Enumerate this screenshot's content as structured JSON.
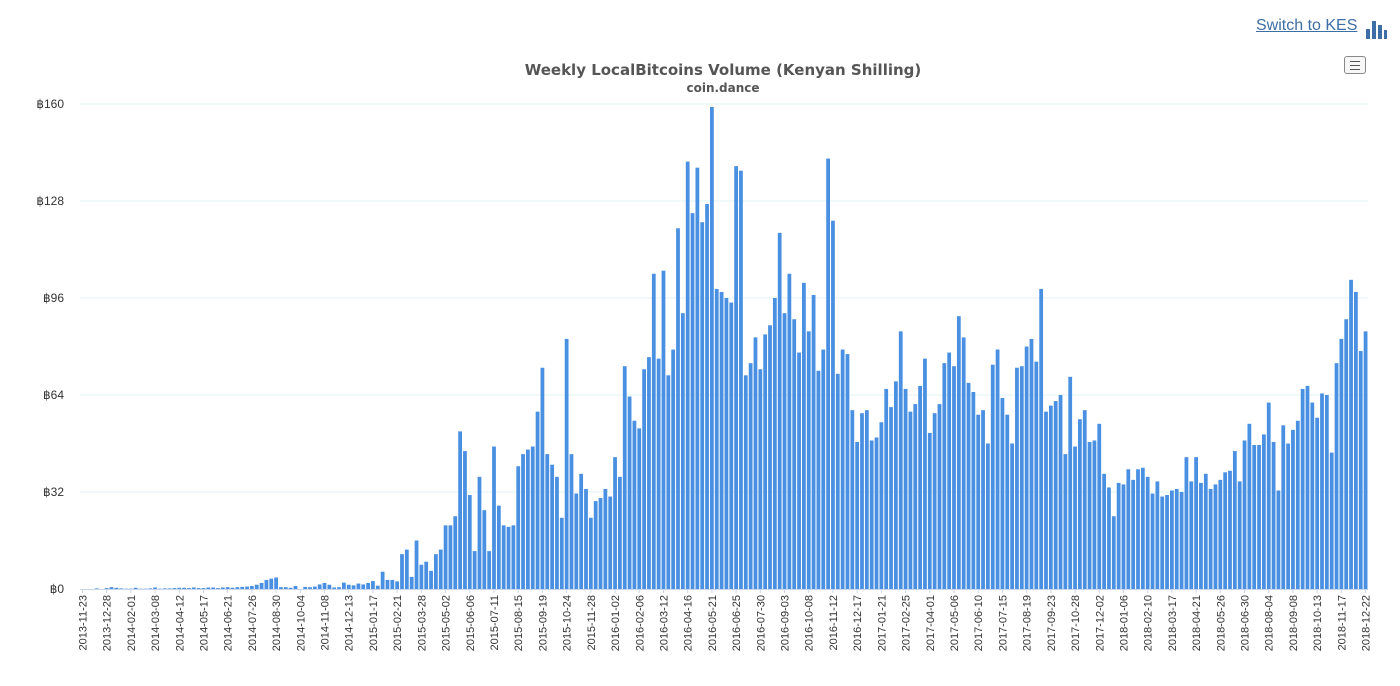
{
  "header": {
    "switch_label": "Switch to KES",
    "switch_icon": "bar-chart-icon"
  },
  "menu": {
    "icon": "hamburger-menu-icon"
  },
  "chart_data": {
    "type": "bar",
    "title": "Weekly LocalBitcoins Volume (Kenyan Shilling)",
    "subtitle": "coin.dance",
    "start_date": "2013-11-23",
    "interval_days": 7,
    "label_every": 5,
    "ylim": [
      0,
      160
    ],
    "yticks": [
      0,
      32,
      64,
      96,
      128,
      160
    ],
    "ytick_prefix": "฿",
    "grid": true,
    "legend": "none",
    "bar_color": "#4a90e2",
    "grid_color": "#e0f2f5",
    "values": [
      0,
      0,
      0,
      0.2,
      0,
      0.3,
      0.6,
      0.4,
      0.2,
      0.1,
      0.1,
      0.4,
      0.1,
      0.1,
      0.2,
      0.5,
      0.1,
      0.2,
      0.2,
      0.3,
      0.4,
      0.4,
      0.3,
      0.5,
      0.3,
      0.3,
      0.5,
      0.5,
      0.3,
      0.5,
      0.6,
      0.4,
      0.6,
      0.7,
      0.8,
      1,
      1.4,
      2,
      3,
      3.4,
      3.8,
      0.6,
      0.6,
      0.4,
      1,
      0,
      0.7,
      0.6,
      0.8,
      1.5,
      2,
      1.4,
      0.5,
      0.6,
      2.1,
      1.4,
      1.2,
      1.8,
      1.5,
      2,
      2.6,
      1.1,
      5.7,
      3,
      3,
      2.5,
      11.5,
      13,
      4,
      16,
      8,
      9,
      6,
      11.5,
      13,
      21,
      21,
      24,
      52,
      45.5,
      31,
      12.5,
      37,
      26,
      12.5,
      47,
      27.5,
      21,
      20.5,
      21,
      40.5,
      44.5,
      46,
      47,
      58.5,
      73,
      44.5,
      41,
      37,
      23.5,
      82.5,
      44.5,
      31.5,
      38,
      33,
      23.5,
      29,
      30,
      33,
      30.5,
      43.5,
      37,
      73.5,
      63.5,
      55.5,
      53,
      72.5,
      76.5,
      104,
      76,
      105,
      70.5,
      79,
      119,
      91,
      141,
      124,
      139,
      121,
      127,
      159,
      99,
      98,
      96,
      94.5,
      139.5,
      138,
      70.5,
      74.5,
      83,
      72.5,
      84,
      87,
      96,
      117.5,
      91,
      104,
      89,
      78,
      101,
      85,
      97,
      72,
      79,
      142,
      121.5,
      71,
      79,
      77.5,
      59,
      48.5,
      58,
      59,
      49,
      50,
      55,
      66,
      60,
      68.5,
      85,
      66,
      58.5,
      61,
      67,
      76,
      51.5,
      58,
      61,
      74.5,
      78,
      73.5,
      90,
      83,
      68,
      65,
      57.5,
      59,
      48,
      74,
      79,
      63,
      57.5,
      48,
      73,
      73.5,
      80,
      82.5,
      75,
      99,
      58.5,
      60.5,
      62,
      64,
      44.5,
      70,
      47,
      56,
      59,
      48.5,
      49,
      54.5,
      38,
      33.5,
      24,
      35,
      34.5,
      39.5,
      36,
      39.5,
      40,
      37,
      31.5,
      35.5,
      30.5,
      31,
      32.5,
      33,
      32,
      43.5,
      35.5,
      43.5,
      35,
      38,
      33,
      34.5,
      36,
      38.5,
      39,
      45.5,
      35.5,
      49,
      54.5,
      47.5,
      47.5,
      51,
      61.5,
      48.5,
      32.5,
      54,
      48,
      52.5,
      55.5,
      66,
      67,
      61.5,
      56.5,
      64.5,
      64,
      45,
      74.5,
      82.5,
      89,
      102,
      98,
      78.5,
      85
    ]
  }
}
